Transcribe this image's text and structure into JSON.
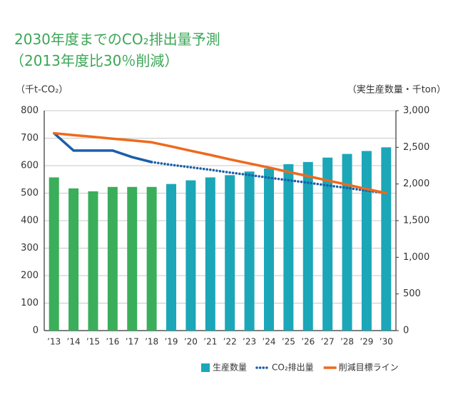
{
  "chart_data": {
    "type": "bar_line",
    "title": "2030年度までのCO₂排出量予測",
    "subtitle": "（2013年度比30％削減）",
    "y_label": "（千t-CO₂）",
    "y2_label": "（実生産数量・千ton）",
    "categories": [
      "’13",
      "’14",
      "’15",
      "’16",
      "’17",
      "’18",
      "’19",
      "’20",
      "’21",
      "’22",
      "’23",
      "’24",
      "’25",
      "’26",
      "’27",
      "’28",
      "’29",
      "’30"
    ],
    "ylim": [
      0,
      800
    ],
    "yticks": [
      0,
      100,
      200,
      300,
      400,
      500,
      600,
      700,
      800
    ],
    "y2lim": [
      0,
      3000
    ],
    "y2ticks": [
      0,
      500,
      {
        "value": 1000,
        "label": "1,000"
      },
      {
        "value": 1500,
        "label": "1,500"
      },
      {
        "value": 2000,
        "label": "2,000"
      },
      {
        "value": 2500,
        "label": "2,500"
      },
      {
        "value": 3000,
        "label": "3,000"
      }
    ],
    "grid": true,
    "series": [
      {
        "name": "生産数量",
        "type": "bar",
        "axis": "y2",
        "color": "#1ba7b8",
        "bar_colors": [
          "#3aae5a",
          "#3aae5a",
          "#3aae5a",
          "#3aae5a",
          "#3aae5a",
          "#3aae5a",
          "#1ba7b8",
          "#1ba7b8",
          "#1ba7b8",
          "#1ba7b8",
          "#1ba7b8",
          "#1ba7b8",
          "#1ba7b8",
          "#1ba7b8",
          "#1ba7b8",
          "#1ba7b8",
          "#1ba7b8",
          "#1ba7b8"
        ],
        "values": [
          2090,
          1940,
          1900,
          1960,
          1960,
          1960,
          2000,
          2050,
          2090,
          2120,
          2170,
          2210,
          2270,
          2300,
          2360,
          2410,
          2450,
          2500
        ]
      },
      {
        "name": "CO₂排出量",
        "type": "line",
        "color": "#1b5faa",
        "dotted_from": 5,
        "values": [
          718,
          655,
          655,
          655,
          631,
          613,
          603,
          594,
          585,
          575,
          566,
          556,
          547,
          538,
          528,
          519,
          509,
          500
        ]
      },
      {
        "name": "削減目標ライン",
        "type": "line",
        "color": "#ee6a1c",
        "values": [
          718,
          711,
          705,
          698,
          692,
          685,
          670,
          654,
          639,
          623,
          608,
          593,
          577,
          562,
          546,
          531,
          515,
          500
        ]
      }
    ]
  }
}
